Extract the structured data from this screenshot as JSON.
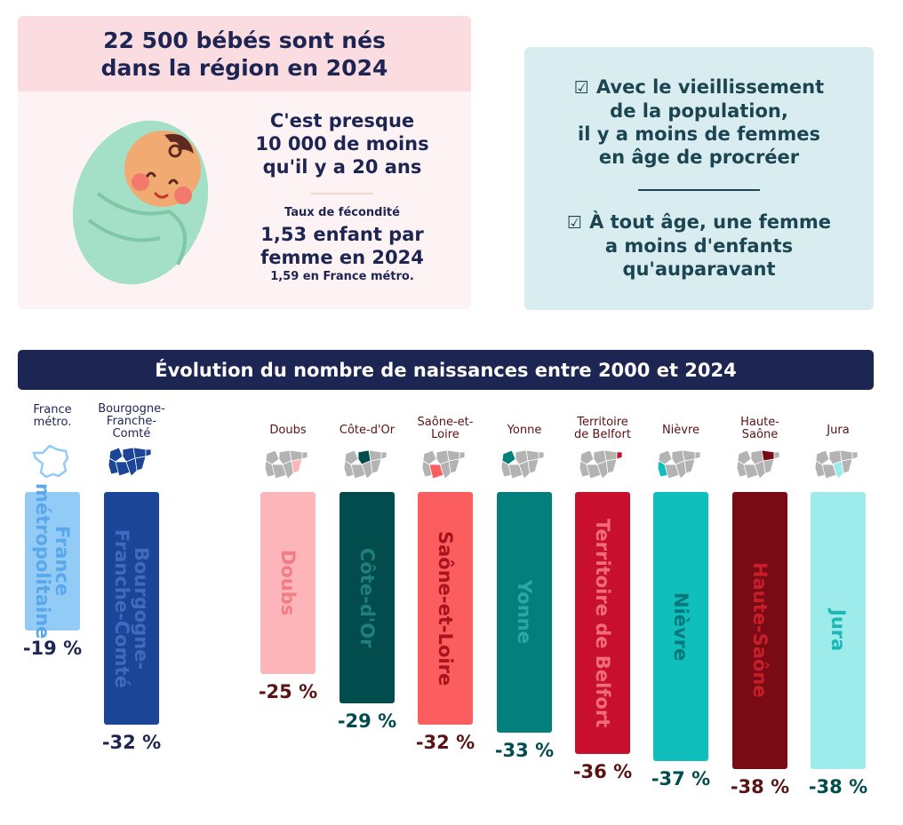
{
  "top_left": {
    "title_line1": "22 500 bébés sont nés",
    "title_line2": "dans la région en 2024",
    "diff_line1": "C'est presque",
    "diff_line2": "10 000 de moins",
    "diff_line3": "qu'il y a 20 ans",
    "fert_label": "Taux de fécondité",
    "fert_line1": "1,53 enfant par",
    "fert_line2": "femme en 2024",
    "fert_note": "1,59 en France métro."
  },
  "top_right": {
    "checkbox_symbol": "☑",
    "point1_line1": "Avec le vieillissement",
    "point1_line2": "de la population,",
    "point1_line3": "il y a moins de femmes",
    "point1_line4": "en âge de procréer",
    "point2_line1": "À tout âge, une femme",
    "point2_line2": "a moins d'enfants",
    "point2_line3": "qu'auparavant"
  },
  "chart_data": {
    "type": "bar",
    "title": "Évolution du nombre de naissances entre 2000 et 2024",
    "unit": "%",
    "orientation": "downward",
    "categories": [
      {
        "label": "France métro.",
        "bar_label": "France\nmétropolitaine",
        "value": -19,
        "value_label": "-19 %",
        "color": "#93cbf7",
        "text_color": "#5aa8ec",
        "value_color": "#1d2553",
        "map_icon": "france-outline-icon"
      },
      {
        "label": "Bourgogne-Franche-Comté",
        "bar_label": "Bourgogne-\nFranche-Comté",
        "value": -32,
        "value_label": "-32 %",
        "color": "#1b4596",
        "text_color": "#3e6ac0",
        "value_color": "#1d2553",
        "map_icon": "region-map-icon"
      },
      {
        "label": "Doubs",
        "bar_label": "Doubs",
        "value": -25,
        "value_label": "-25 %",
        "color": "#fdb5ba",
        "text_color": "#f37b84",
        "value_color": "#5a1212",
        "map_icon": "region-map-icon"
      },
      {
        "label": "Côte-d'Or",
        "bar_label": "Côte-d'Or",
        "value": -29,
        "value_label": "-29 %",
        "color": "#024c4d",
        "text_color": "#1e7f7d",
        "value_color": "#024c4d",
        "map_icon": "region-map-icon"
      },
      {
        "label": "Saône-et-Loire",
        "bar_label": "Saône-et-Loire",
        "value": -32,
        "value_label": "-32 %",
        "color": "#fc5d5f",
        "text_color": "#a8141b",
        "value_color": "#5a1212",
        "map_icon": "region-map-icon"
      },
      {
        "label": "Yonne",
        "bar_label": "Yonne",
        "value": -33,
        "value_label": "-33 %",
        "color": "#03807c",
        "text_color": "#2aa8a4",
        "value_color": "#024c4d",
        "map_icon": "region-map-icon"
      },
      {
        "label": "Territoire de Belfort",
        "bar_label": "Territoire de Belfort",
        "value": -36,
        "value_label": "-36 %",
        "color": "#c8102e",
        "text_color": "#f06c78",
        "value_color": "#5a1212",
        "map_icon": "region-map-icon"
      },
      {
        "label": "Nièvre",
        "bar_label": "Nièvre",
        "value": -37,
        "value_label": "-37 %",
        "color": "#0fbfbb",
        "text_color": "#04787a",
        "value_color": "#024c4d",
        "map_icon": "region-map-icon"
      },
      {
        "label": "Haute-Saône",
        "bar_label": "Haute-Saône",
        "value": -38,
        "value_label": "-38 %",
        "color": "#780b13",
        "text_color": "#c81e2c",
        "value_color": "#5a1212",
        "map_icon": "region-map-icon"
      },
      {
        "label": "Jura",
        "bar_label": "Jura",
        "value": -38,
        "value_label": "-38 %",
        "color": "#9deceb",
        "text_color": "#1db8b6",
        "value_color": "#024c4d",
        "map_icon": "region-map-icon"
      }
    ]
  }
}
